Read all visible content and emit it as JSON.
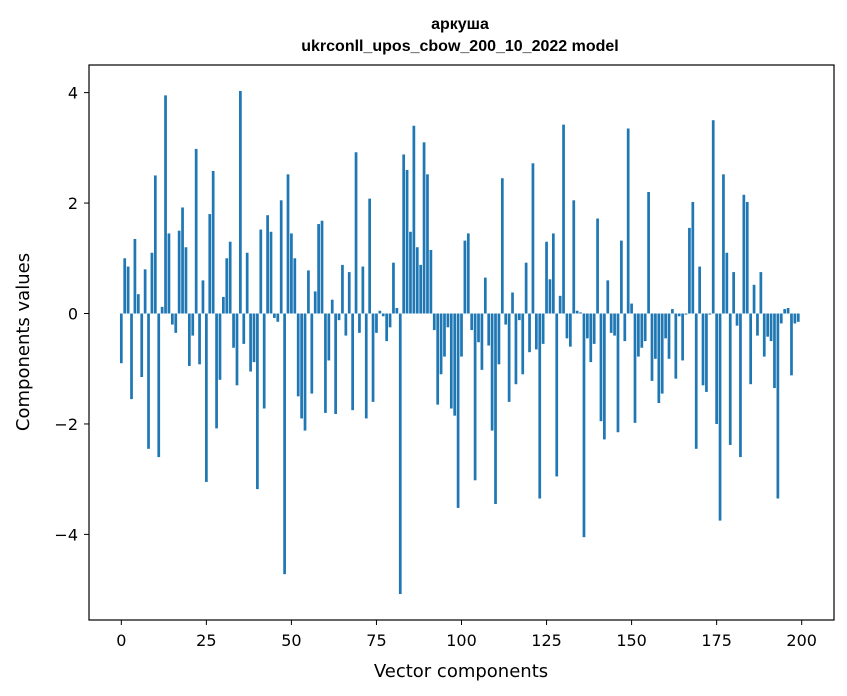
{
  "chart_data": {
    "type": "bar",
    "title": "аркуша",
    "subtitle": "ukrconll_upos_cbow_200_10_2022 model",
    "xlabel": "Vector components",
    "ylabel": "Components values",
    "xlim": [
      -9.5,
      209.5
    ],
    "ylim": [
      -5.55,
      4.5
    ],
    "xticks": [
      0,
      25,
      50,
      75,
      100,
      125,
      150,
      175,
      200
    ],
    "xtick_labels": [
      "0",
      "25",
      "50",
      "75",
      "100",
      "125",
      "150",
      "175",
      "200"
    ],
    "yticks": [
      -4,
      -2,
      0,
      2,
      4
    ],
    "ytick_labels": [
      "−4",
      "−2",
      "0",
      "2",
      "4"
    ],
    "grid": false,
    "bar_color": "#1f77b4",
    "x": [
      0,
      1,
      2,
      3,
      4,
      5,
      6,
      7,
      8,
      9,
      10,
      11,
      12,
      13,
      14,
      15,
      16,
      17,
      18,
      19,
      20,
      21,
      22,
      23,
      24,
      25,
      26,
      27,
      28,
      29,
      30,
      31,
      32,
      33,
      34,
      35,
      36,
      37,
      38,
      39,
      40,
      41,
      42,
      43,
      44,
      45,
      46,
      47,
      48,
      49,
      50,
      51,
      52,
      53,
      54,
      55,
      56,
      57,
      58,
      59,
      60,
      61,
      62,
      63,
      64,
      65,
      66,
      67,
      68,
      69,
      70,
      71,
      72,
      73,
      74,
      75,
      76,
      77,
      78,
      79,
      80,
      81,
      82,
      83,
      84,
      85,
      86,
      87,
      88,
      89,
      90,
      91,
      92,
      93,
      94,
      95,
      96,
      97,
      98,
      99,
      100,
      101,
      102,
      103,
      104,
      105,
      106,
      107,
      108,
      109,
      110,
      111,
      112,
      113,
      114,
      115,
      116,
      117,
      118,
      119,
      120,
      121,
      122,
      123,
      124,
      125,
      126,
      127,
      128,
      129,
      130,
      131,
      132,
      133,
      134,
      135,
      136,
      137,
      138,
      139,
      140,
      141,
      142,
      143,
      144,
      145,
      146,
      147,
      148,
      149,
      150,
      151,
      152,
      153,
      154,
      155,
      156,
      157,
      158,
      159,
      160,
      161,
      162,
      163,
      164,
      165,
      166,
      167,
      168,
      169,
      170,
      171,
      172,
      173,
      174,
      175,
      176,
      177,
      178,
      179,
      180,
      181,
      182,
      183,
      184,
      185,
      186,
      187,
      188,
      189,
      190,
      191,
      192,
      193,
      194,
      195,
      196,
      197,
      198,
      199
    ],
    "values": [
      -0.9,
      1.0,
      0.85,
      -1.55,
      1.35,
      0.35,
      -1.15,
      0.8,
      -2.45,
      1.1,
      2.5,
      -2.6,
      0.12,
      3.95,
      1.45,
      -0.2,
      -0.35,
      1.5,
      1.92,
      1.2,
      -0.95,
      -0.4,
      2.98,
      -0.92,
      0.6,
      -3.05,
      1.8,
      2.58,
      -2.08,
      -1.2,
      0.3,
      1.0,
      1.3,
      -0.62,
      -1.3,
      4.03,
      -0.55,
      1.1,
      -1.05,
      -0.88,
      -3.18,
      1.52,
      -1.72,
      1.78,
      1.48,
      -0.08,
      -0.15,
      2.05,
      -4.72,
      2.52,
      1.45,
      1.0,
      -1.5,
      -1.9,
      -2.12,
      0.78,
      -1.45,
      0.4,
      1.62,
      1.68,
      -1.8,
      -0.85,
      0.25,
      -1.82,
      -0.12,
      0.88,
      -0.4,
      0.75,
      -1.75,
      2.92,
      -0.35,
      0.85,
      -1.9,
      2.08,
      -1.6,
      -0.35,
      0.05,
      -0.05,
      -0.5,
      -0.25,
      0.92,
      0.1,
      -5.08,
      2.88,
      2.6,
      1.48,
      3.4,
      1.2,
      0.88,
      3.1,
      2.52,
      1.15,
      -0.3,
      -1.65,
      -1.1,
      -0.78,
      -0.25,
      -1.72,
      -1.85,
      -3.52,
      -0.78,
      1.32,
      1.45,
      -0.3,
      -3.02,
      -0.52,
      -1.02,
      0.65,
      -0.58,
      -2.12,
      -3.45,
      -0.92,
      2.45,
      -0.2,
      -1.6,
      0.38,
      -1.28,
      -0.12,
      -1.1,
      0.92,
      -0.7,
      2.72,
      -0.65,
      -3.35,
      -0.55,
      1.3,
      0.62,
      1.45,
      -2.95,
      0.32,
      3.42,
      -0.45,
      -0.6,
      2.05,
      0.05,
      0.02,
      -4.05,
      -0.45,
      -0.88,
      -0.55,
      1.72,
      -1.95,
      -2.28,
      0.6,
      -0.35,
      -0.4,
      -2.15,
      1.32,
      -0.5,
      3.35,
      0.18,
      -1.98,
      -0.78,
      -0.62,
      -0.5,
      2.2,
      -1.22,
      -0.82,
      -1.62,
      -1.45,
      -0.45,
      -0.82,
      0.08,
      -1.18,
      -0.05,
      -0.85,
      -0.02,
      1.55,
      2.02,
      -2.45,
      0.85,
      -1.3,
      -1.42,
      -0.02,
      3.5,
      -2.0,
      -3.75,
      2.52,
      1.1,
      -2.38,
      0.75,
      -0.22,
      -2.6,
      2.15,
      2.02,
      -1.28,
      0.52,
      -0.4,
      0.75,
      -0.78,
      -0.42,
      -0.5,
      -1.35,
      -3.35,
      -0.18,
      0.08,
      0.1,
      -1.12,
      -0.18,
      -0.15
    ]
  }
}
